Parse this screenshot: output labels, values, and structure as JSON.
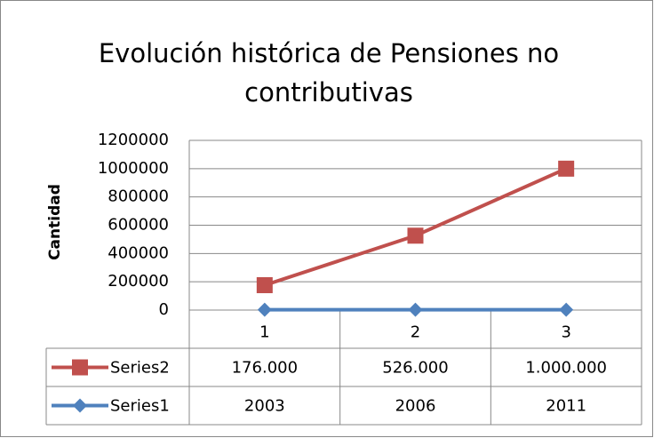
{
  "chart_data": {
    "type": "line",
    "title": "Evolución histórica de Pensiones no contributivas",
    "y_label": "Cantidad",
    "categories": [
      "1",
      "2",
      "3"
    ],
    "series": [
      {
        "name": "Series2",
        "color": "#c0504d",
        "marker": "square",
        "values": [
          176000,
          526000,
          1000000
        ],
        "value_labels": [
          "176.000",
          "526.000",
          "1.000.000"
        ]
      },
      {
        "name": "Series1",
        "color": "#4f81bd",
        "marker": "diamond",
        "values": [
          2003,
          2006,
          2011
        ]
      }
    ],
    "ylim": [
      0,
      1200000
    ],
    "yticks": [
      0,
      200000,
      400000,
      600000,
      800000,
      1000000,
      1200000
    ],
    "grid": true
  }
}
